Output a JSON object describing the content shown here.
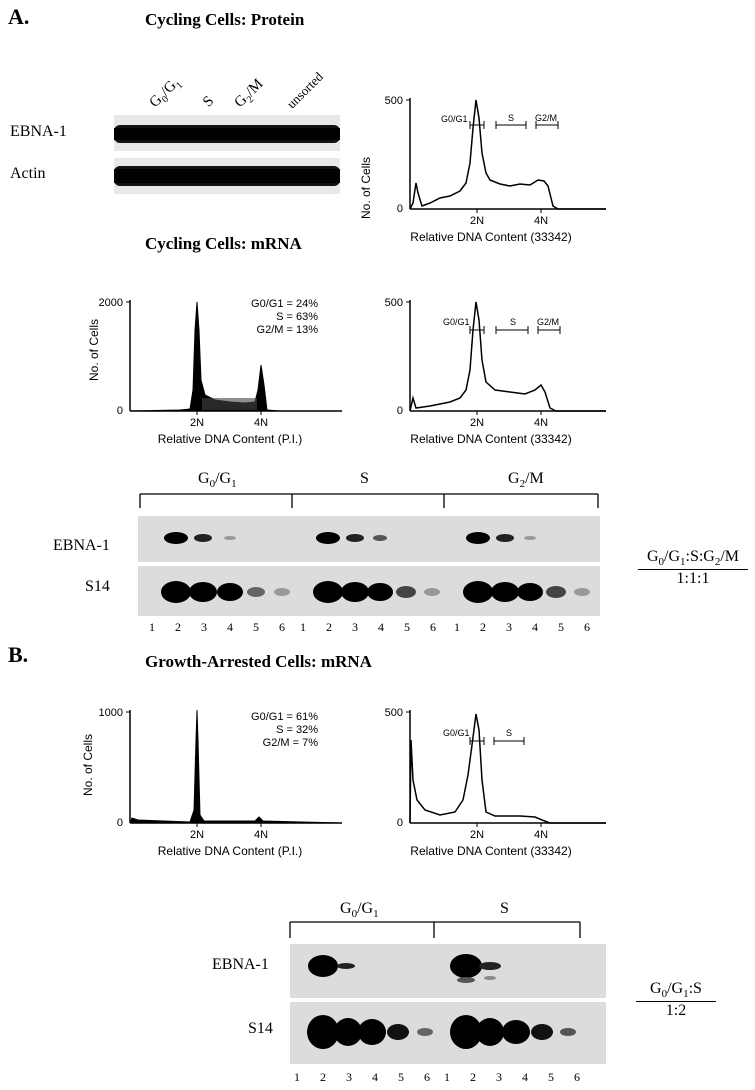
{
  "panelA": {
    "label": "A.",
    "title_protein": "Cycling Cells: Protein",
    "title_mrna": "Cycling Cells: mRNA",
    "lane_headers": [
      "G0/G1",
      "S",
      "G2/M",
      "unsorted"
    ],
    "row_labels": [
      "EBNA-1",
      "Actin"
    ],
    "hist_33342_top": {
      "ylabel": "No. of Cells",
      "ymax": "500",
      "ymin": "0",
      "xlabel": "Relative DNA Content (33342)",
      "xtick1": "2N",
      "xtick2": "4N",
      "gate1": "G0/G1",
      "gate2": "S",
      "gate3": "G2/M"
    },
    "hist_pi": {
      "ylabel": "No. of Cells",
      "ymax": "2000",
      "ymin": "0",
      "xlabel": "Relative DNA Content (P.I.)",
      "xtick1": "2N",
      "xtick2": "4N",
      "stats": [
        "G0/G1 = 24%",
        "S = 63%",
        "G2/M = 13%"
      ]
    },
    "hist_33342_mid": {
      "ylabel": "No. of Cells",
      "ymax": "500",
      "ymin": "0",
      "xlabel": "Relative DNA Content (33342)",
      "xtick1": "2N",
      "xtick2": "4N",
      "gate1": "G0/G1",
      "gate2": "S",
      "gate3": "G2/M"
    },
    "northern": {
      "groups": [
        "G0/G1",
        "S",
        "G2/M"
      ],
      "rows": [
        "EBNA-1",
        "S14"
      ],
      "lanes": [
        "1",
        "2",
        "3",
        "4",
        "5",
        "6",
        "1",
        "2",
        "3",
        "4",
        "5",
        "6",
        "1",
        "2",
        "3",
        "4",
        "5",
        "6"
      ],
      "ratio_top": "G0/G1:S:G2/M",
      "ratio_bottom": "1:1:1"
    }
  },
  "panelB": {
    "label": "B.",
    "title": "Growth-Arrested Cells: mRNA",
    "hist_pi": {
      "ylabel": "No. of Cells",
      "ymax": "1000",
      "ymin": "0",
      "xlabel": "Relative DNA Content (P.I.)",
      "xtick1": "2N",
      "xtick2": "4N",
      "stats": [
        "G0/G1 = 61%",
        "S = 32%",
        "G2/M = 7%"
      ]
    },
    "hist_33342": {
      "ylabel": "No. of Cells",
      "ymax": "500",
      "ymin": "0",
      "xlabel": "Relative DNA Content (33342)",
      "xtick1": "2N",
      "xtick2": "4N",
      "gate1": "G0/G1",
      "gate2": "S"
    },
    "northern": {
      "groups": [
        "G0/G1",
        "S"
      ],
      "rows": [
        "EBNA-1",
        "S14"
      ],
      "lanes": [
        "1",
        "2",
        "3",
        "4",
        "5",
        "6",
        "1",
        "2",
        "3",
        "4",
        "5",
        "6"
      ],
      "ratio_top": "G0/G1:S",
      "ratio_bottom": "1:2"
    }
  }
}
